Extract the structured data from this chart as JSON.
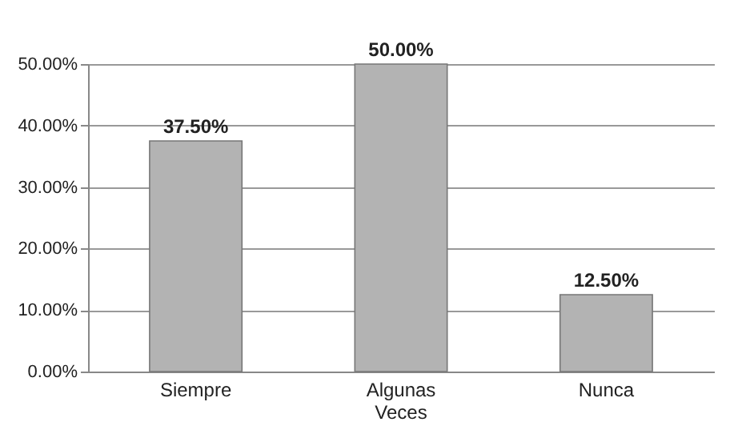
{
  "chart_data": {
    "type": "bar",
    "categories": [
      "Siempre",
      "Algunas Veces",
      "Nunca"
    ],
    "values": [
      37.5,
      50,
      12.5
    ],
    "value_labels": [
      "37.50%",
      "50.00%",
      "12.50%"
    ],
    "color": "#b3b3b3",
    "ylim": [
      0,
      50
    ],
    "yticks": [
      {
        "value": 0,
        "label": "0.00%"
      },
      {
        "value": 10,
        "label": "10.00%"
      },
      {
        "value": 20,
        "label": "20.00%"
      },
      {
        "value": 30,
        "label": "30.00%"
      },
      {
        "value": 40,
        "label": "40.00%"
      },
      {
        "value": 50,
        "label": "50.00%"
      }
    ],
    "grid": true
  }
}
